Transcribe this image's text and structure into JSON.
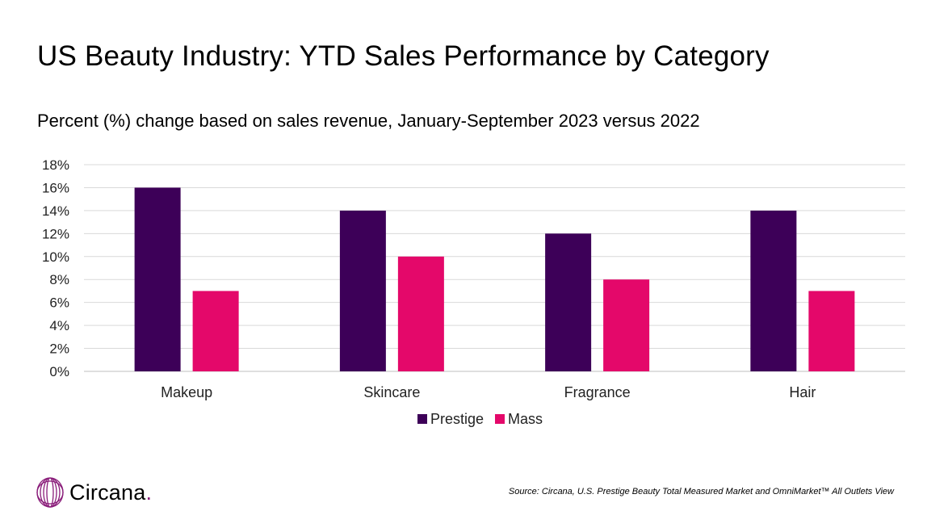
{
  "title": "US Beauty Industry: YTD Sales Performance by Category",
  "subtitle": "Percent (%) change based on sales revenue, January-September 2023 versus 2022",
  "logo": {
    "name": "Circana",
    "dot": "."
  },
  "source": "Source: Circana, U.S. Prestige Beauty Total Measured Market and OmniMarket™ All Outlets View",
  "colors": {
    "prestige": "#3d0058",
    "mass": "#e4086a",
    "grid": "#d9d9d9"
  },
  "chart_data": {
    "type": "bar",
    "title": "US Beauty Industry: YTD Sales Performance by Category",
    "subtitle": "Percent (%) change based on sales revenue, January-September 2023 versus 2022",
    "categories": [
      "Makeup",
      "Skincare",
      "Fragrance",
      "Hair"
    ],
    "series": [
      {
        "name": "Prestige",
        "values": [
          16,
          14,
          12,
          14
        ],
        "color": "#3d0058"
      },
      {
        "name": "Mass",
        "values": [
          7,
          10,
          8,
          7
        ],
        "color": "#e4086a"
      }
    ],
    "ylim": [
      0,
      18
    ],
    "yticks": [
      0,
      2,
      4,
      6,
      8,
      10,
      12,
      14,
      16,
      18
    ],
    "ytick_labels": [
      "0%",
      "2%",
      "4%",
      "6%",
      "8%",
      "10%",
      "12%",
      "14%",
      "16%",
      "18%"
    ],
    "grid": true,
    "legend": "bottom"
  }
}
